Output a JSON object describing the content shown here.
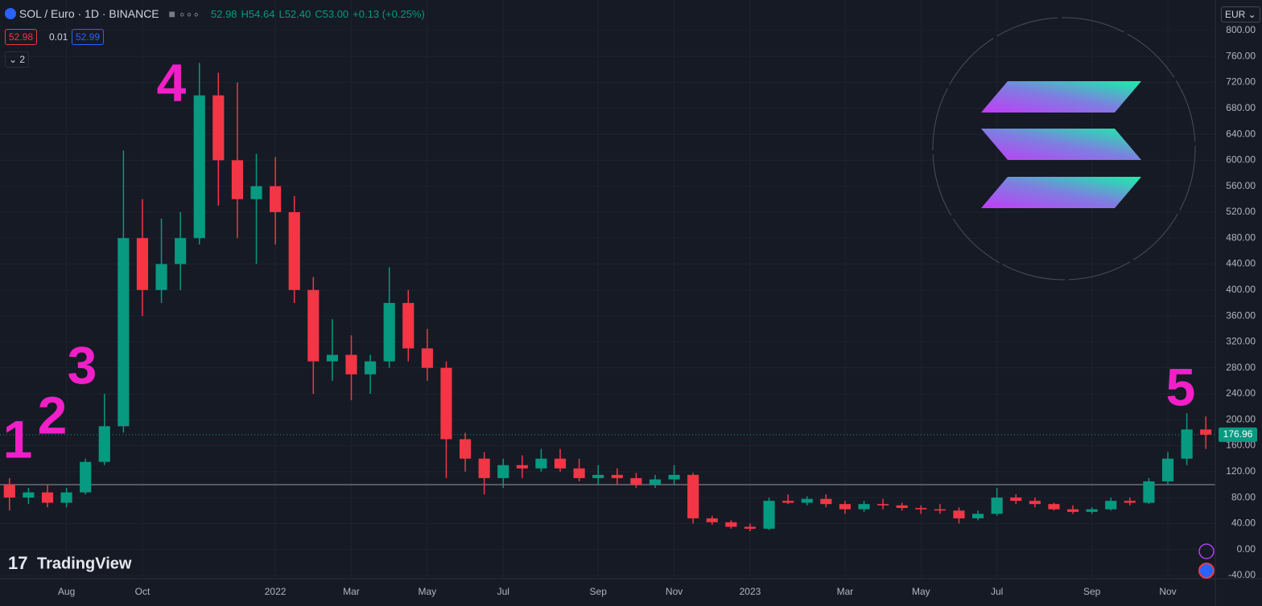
{
  "header": {
    "symbol": "SOL / Euro · 1D · BINANCE",
    "ohlc": [
      "52.98",
      "H54.64",
      "L52.40",
      "C53.00",
      "+0.13 (+0.25%)"
    ],
    "bid": "52.98",
    "spread": "0.01",
    "ask": "52.99",
    "indicators": "2",
    "currency": "EUR",
    "brand": "TradingView"
  },
  "chart_data": {
    "type": "candlestick",
    "categories": [
      null,
      null,
      null,
      "Aug",
      null,
      null,
      null,
      "Oct",
      null,
      null,
      null,
      null,
      null,
      null,
      "2022",
      null,
      null,
      null,
      "Mar",
      null,
      null,
      null,
      "May",
      null,
      null,
      null,
      "Jul",
      null,
      null,
      null,
      null,
      "Sep",
      null,
      null,
      null,
      "Nov",
      null,
      null,
      null,
      "2023",
      null,
      null,
      null,
      null,
      "Mar",
      null,
      null,
      null,
      "May",
      null,
      null,
      null,
      "Jul",
      null,
      null,
      null,
      null,
      "Sep",
      null,
      null,
      null,
      "Nov",
      null,
      null
    ],
    "open": [
      100,
      80,
      88,
      72,
      88,
      135,
      190,
      480,
      400,
      440,
      480,
      700,
      600,
      540,
      560,
      520,
      400,
      290,
      300,
      270,
      290,
      380,
      310,
      280,
      170,
      140,
      110,
      130,
      125,
      140,
      125,
      110,
      115,
      110,
      100,
      108,
      115,
      48,
      42,
      35,
      32,
      75,
      72,
      78,
      70,
      62,
      70,
      68,
      64,
      62,
      60,
      48,
      55,
      80,
      75,
      70,
      62,
      58,
      62,
      75,
      72,
      105,
      140,
      185
    ],
    "high": [
      110,
      95,
      100,
      95,
      140,
      240,
      615,
      540,
      510,
      520,
      750,
      735,
      720,
      610,
      605,
      545,
      420,
      355,
      330,
      300,
      435,
      400,
      340,
      290,
      180,
      150,
      140,
      145,
      155,
      155,
      140,
      130,
      125,
      118,
      115,
      130,
      118,
      52,
      45,
      40,
      80,
      85,
      82,
      85,
      75,
      75,
      78,
      72,
      68,
      70,
      65,
      60,
      95,
      85,
      80,
      72,
      68,
      65,
      80,
      80,
      110,
      150,
      210,
      205
    ],
    "low": [
      60,
      70,
      65,
      65,
      85,
      130,
      180,
      360,
      380,
      400,
      470,
      530,
      480,
      440,
      470,
      380,
      240,
      260,
      230,
      240,
      280,
      290,
      260,
      110,
      120,
      85,
      95,
      110,
      120,
      120,
      105,
      100,
      100,
      95,
      95,
      100,
      40,
      38,
      32,
      28,
      30,
      70,
      68,
      65,
      55,
      58,
      62,
      60,
      55,
      55,
      40,
      45,
      52,
      70,
      65,
      60,
      55,
      55,
      60,
      68,
      70,
      100,
      130,
      155
    ],
    "close": [
      80,
      88,
      72,
      88,
      135,
      190,
      480,
      400,
      440,
      480,
      700,
      600,
      540,
      560,
      520,
      400,
      290,
      300,
      270,
      290,
      380,
      310,
      280,
      170,
      140,
      110,
      130,
      125,
      140,
      125,
      110,
      115,
      110,
      100,
      108,
      115,
      48,
      42,
      35,
      32,
      75,
      72,
      78,
      70,
      62,
      70,
      68,
      64,
      62,
      60,
      48,
      55,
      80,
      75,
      70,
      62,
      58,
      62,
      75,
      72,
      105,
      140,
      185,
      176.96
    ],
    "up_color": "#089981",
    "down_color": "#f23645",
    "last_price": 176.96,
    "reference_line": 100,
    "annotations": [
      "1",
      "2",
      "3",
      "4",
      "5"
    ],
    "ylim": [
      -45,
      847
    ],
    "yticks": [
      {
        "value": -40,
        "label": "-40.00"
      },
      {
        "value": 0,
        "label": "0.00"
      },
      {
        "value": 40,
        "label": "40.00"
      },
      {
        "value": 80,
        "label": "80.00"
      },
      {
        "value": 120,
        "label": "120.00"
      },
      {
        "value": 160,
        "label": "160.00"
      },
      {
        "value": 200,
        "label": "200.00"
      },
      {
        "value": 240,
        "label": "240.00"
      },
      {
        "value": 280,
        "label": "280.00"
      },
      {
        "value": 320,
        "label": "320.00"
      },
      {
        "value": 360,
        "label": "360.00"
      },
      {
        "value": 400,
        "label": "400.00"
      },
      {
        "value": 440,
        "label": "440.00"
      },
      {
        "value": 480,
        "label": "480.00"
      },
      {
        "value": 520,
        "label": "520.00"
      },
      {
        "value": 560,
        "label": "560.00"
      },
      {
        "value": 600,
        "label": "600.00"
      },
      {
        "value": 640,
        "label": "640.00"
      },
      {
        "value": 680,
        "label": "680.00"
      },
      {
        "value": 720,
        "label": "720.00"
      },
      {
        "value": 760,
        "label": "760.00"
      },
      {
        "value": 800,
        "label": "800.00"
      }
    ],
    "grid": true
  }
}
